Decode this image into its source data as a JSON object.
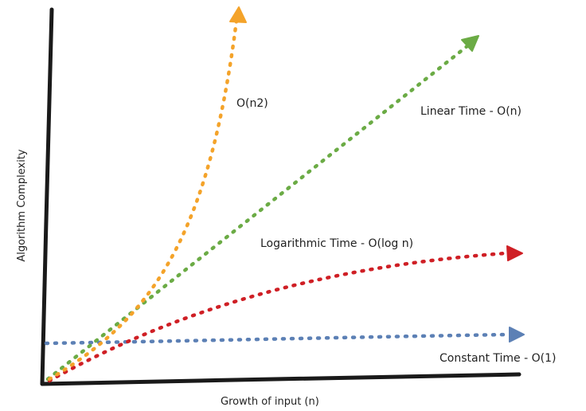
{
  "axes": {
    "x_label": "Growth of input (n)",
    "y_label": "Algorithm Complexity",
    "color": "#1a1a1a"
  },
  "curves": [
    {
      "key": "quadratic",
      "label": "O(n2)",
      "color": "#f4a32a",
      "shape": "steep-curve"
    },
    {
      "key": "linear",
      "label": "Linear Time - O(n)",
      "color": "#6bab45",
      "shape": "straight-line"
    },
    {
      "key": "logarithmic",
      "label": "Logarithmic Time - O(log n)",
      "color": "#cf1f25",
      "shape": "concave-curve"
    },
    {
      "key": "constant",
      "label": "Constant Time - O(1)",
      "color": "#5c80b5",
      "shape": "horizontal-line"
    }
  ]
}
